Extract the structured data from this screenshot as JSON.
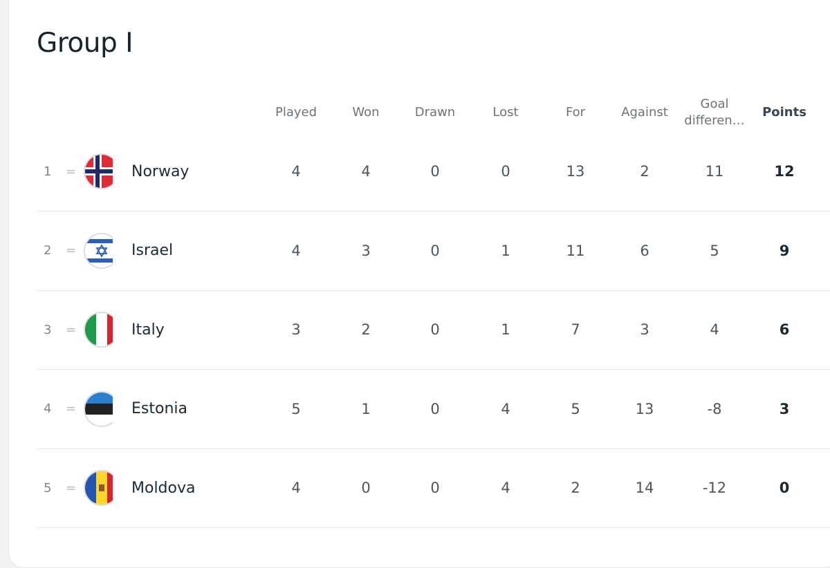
{
  "group_title": "Group I",
  "columns": [
    "Played",
    "Won",
    "Drawn",
    "Lost",
    "For",
    "Against",
    "Goal differen…",
    "Points"
  ],
  "rows": [
    {
      "pos": "1",
      "trend": "=",
      "team": "Norway",
      "flag": "norway-flag",
      "stats": [
        "4",
        "4",
        "0",
        "0",
        "13",
        "2",
        "11",
        "12"
      ]
    },
    {
      "pos": "2",
      "trend": "=",
      "team": "Israel",
      "flag": "israel-flag",
      "stats": [
        "4",
        "3",
        "0",
        "1",
        "11",
        "6",
        "5",
        "9"
      ]
    },
    {
      "pos": "3",
      "trend": "=",
      "team": "Italy",
      "flag": "italy-flag",
      "stats": [
        "3",
        "2",
        "0",
        "1",
        "7",
        "3",
        "4",
        "6"
      ]
    },
    {
      "pos": "4",
      "trend": "=",
      "team": "Estonia",
      "flag": "estonia-flag",
      "stats": [
        "5",
        "1",
        "0",
        "4",
        "5",
        "13",
        "-8",
        "3"
      ]
    },
    {
      "pos": "5",
      "trend": "=",
      "team": "Moldova",
      "flag": "moldova-flag",
      "stats": [
        "4",
        "0",
        "0",
        "4",
        "2",
        "14",
        "-12",
        "0"
      ]
    }
  ]
}
